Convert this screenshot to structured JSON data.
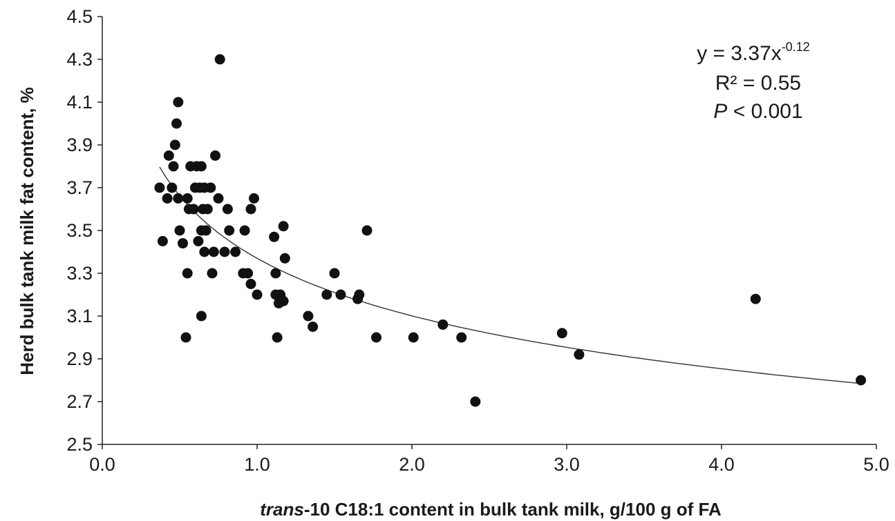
{
  "chart_data": {
    "type": "scatter",
    "title": "",
    "xlabel_italic": "trans",
    "xlabel_rest": "-10 C18:1 content in bulk tank milk, g/100 g of FA",
    "ylabel": "Herd bulk tank milk fat content, %",
    "xlim": [
      0.0,
      5.0
    ],
    "ylim": [
      2.5,
      4.5
    ],
    "x_ticks": [
      "0.0",
      "1.0",
      "2.0",
      "3.0",
      "4.0",
      "5.0"
    ],
    "y_ticks": [
      "2.5",
      "2.7",
      "2.9",
      "3.1",
      "3.3",
      "3.5",
      "3.7",
      "3.9",
      "4.1",
      "4.3",
      "4.5"
    ],
    "grid": false,
    "marker_color": "#111111",
    "annotation": {
      "equation_base": "y = 3.37x",
      "equation_exponent": "-0.12",
      "r_squared": "R² = 0.55",
      "p_italic": "P",
      "p_rest": " < 0.001"
    },
    "trendline": {
      "kind": "power",
      "a": 3.37,
      "b": -0.12,
      "x_start": 0.37,
      "x_end": 4.9
    },
    "points": [
      [
        0.37,
        3.7
      ],
      [
        0.39,
        3.45
      ],
      [
        0.42,
        3.65
      ],
      [
        0.43,
        3.85
      ],
      [
        0.45,
        3.7
      ],
      [
        0.46,
        3.8
      ],
      [
        0.47,
        3.9
      ],
      [
        0.48,
        4.0
      ],
      [
        0.49,
        4.1
      ],
      [
        0.49,
        3.65
      ],
      [
        0.5,
        3.5
      ],
      [
        0.52,
        3.44
      ],
      [
        0.54,
        3.0
      ],
      [
        0.55,
        3.3
      ],
      [
        0.55,
        3.65
      ],
      [
        0.56,
        3.6
      ],
      [
        0.57,
        3.8
      ],
      [
        0.59,
        3.6
      ],
      [
        0.6,
        3.7
      ],
      [
        0.61,
        3.8
      ],
      [
        0.62,
        3.45
      ],
      [
        0.63,
        3.7
      ],
      [
        0.64,
        3.1
      ],
      [
        0.64,
        3.5
      ],
      [
        0.64,
        3.8
      ],
      [
        0.65,
        3.6
      ],
      [
        0.66,
        3.4
      ],
      [
        0.66,
        3.7
      ],
      [
        0.67,
        3.5
      ],
      [
        0.68,
        3.6
      ],
      [
        0.7,
        3.7
      ],
      [
        0.71,
        3.3
      ],
      [
        0.72,
        3.4
      ],
      [
        0.73,
        3.85
      ],
      [
        0.75,
        3.65
      ],
      [
        0.76,
        4.3
      ],
      [
        0.79,
        3.4
      ],
      [
        0.81,
        3.6
      ],
      [
        0.82,
        3.5
      ],
      [
        0.86,
        3.4
      ],
      [
        0.91,
        3.3
      ],
      [
        0.92,
        3.5
      ],
      [
        0.94,
        3.3
      ],
      [
        0.96,
        3.25
      ],
      [
        0.96,
        3.6
      ],
      [
        0.98,
        3.65
      ],
      [
        1.0,
        3.2
      ],
      [
        1.11,
        3.47
      ],
      [
        1.12,
        3.3
      ],
      [
        1.12,
        3.2
      ],
      [
        1.13,
        3.0
      ],
      [
        1.14,
        3.16
      ],
      [
        1.15,
        3.2
      ],
      [
        1.17,
        3.52
      ],
      [
        1.17,
        3.17
      ],
      [
        1.18,
        3.37
      ],
      [
        1.33,
        3.1
      ],
      [
        1.36,
        3.05
      ],
      [
        1.45,
        3.2
      ],
      [
        1.5,
        3.3
      ],
      [
        1.54,
        3.2
      ],
      [
        1.65,
        3.18
      ],
      [
        1.66,
        3.2
      ],
      [
        1.71,
        3.5
      ],
      [
        1.77,
        3.0
      ],
      [
        2.01,
        3.0
      ],
      [
        2.2,
        3.06
      ],
      [
        2.32,
        3.0
      ],
      [
        2.41,
        2.7
      ],
      [
        2.97,
        3.02
      ],
      [
        3.08,
        2.92
      ],
      [
        4.22,
        3.18
      ],
      [
        4.9,
        2.8
      ]
    ]
  }
}
